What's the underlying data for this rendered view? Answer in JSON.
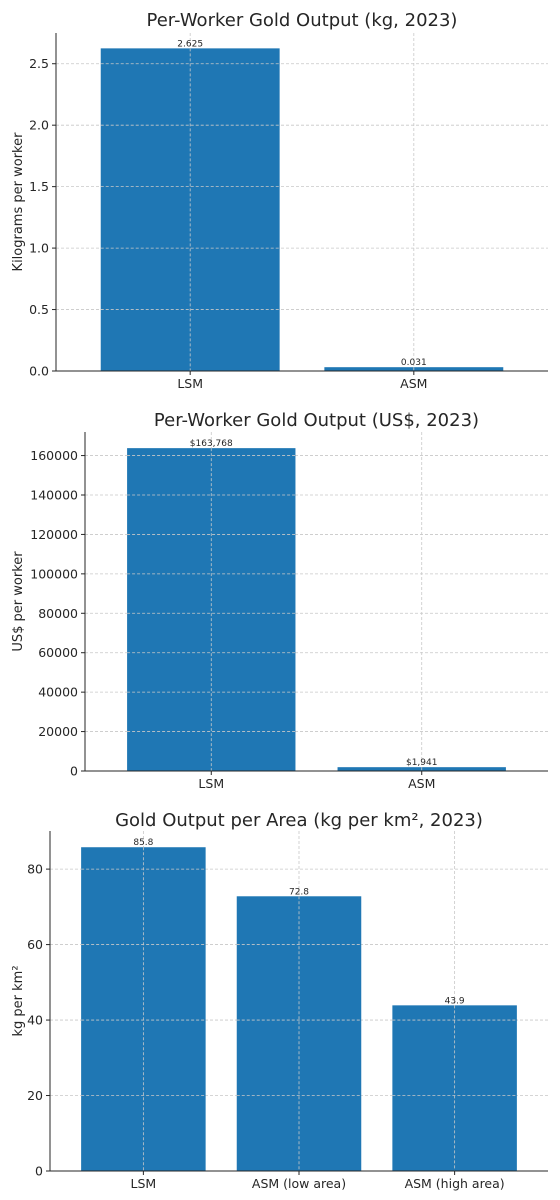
{
  "chart_data": [
    {
      "type": "bar",
      "title": "Per-Worker Gold Output (kg, 2023)",
      "xlabel": "",
      "ylabel": "Kilograms per worker",
      "categories": [
        "LSM",
        "ASM"
      ],
      "values": [
        2.625,
        0.031
      ],
      "value_labels": [
        "2.625",
        "0.031"
      ],
      "ylim": [
        0,
        2.75
      ],
      "yticks": [
        0.0,
        0.5,
        1.0,
        1.5,
        2.0,
        2.5
      ],
      "ytick_labels": [
        "0.0",
        "0.5",
        "1.0",
        "1.5",
        "2.0",
        "2.5"
      ],
      "grid": true,
      "color": "#1f77b4"
    },
    {
      "type": "bar",
      "title": "Per-Worker Gold Output (US$, 2023)",
      "xlabel": "",
      "ylabel": "US$ per worker",
      "categories": [
        "LSM",
        "ASM"
      ],
      "values": [
        163768,
        1941
      ],
      "value_labels": [
        "$163,768",
        "$1,941"
      ],
      "ylim": [
        0,
        171956
      ],
      "yticks": [
        0,
        20000,
        40000,
        60000,
        80000,
        100000,
        120000,
        140000,
        160000
      ],
      "ytick_labels": [
        "0",
        "20000",
        "40000",
        "60000",
        "80000",
        "100000",
        "120000",
        "140000",
        "160000"
      ],
      "grid": true,
      "color": "#1f77b4"
    },
    {
      "type": "bar",
      "title": "Gold Output per Area (kg per km², 2023)",
      "xlabel": "",
      "ylabel": "kg per km²",
      "categories": [
        "LSM",
        "ASM (low area)",
        "ASM (high area)"
      ],
      "values": [
        85.8,
        72.8,
        43.9
      ],
      "value_labels": [
        "85.8",
        "72.8",
        "43.9"
      ],
      "ylim": [
        0,
        90.1
      ],
      "yticks": [
        0,
        20,
        40,
        60,
        80
      ],
      "ytick_labels": [
        "0",
        "20",
        "40",
        "60",
        "80"
      ],
      "grid": true,
      "color": "#1f77b4"
    }
  ]
}
